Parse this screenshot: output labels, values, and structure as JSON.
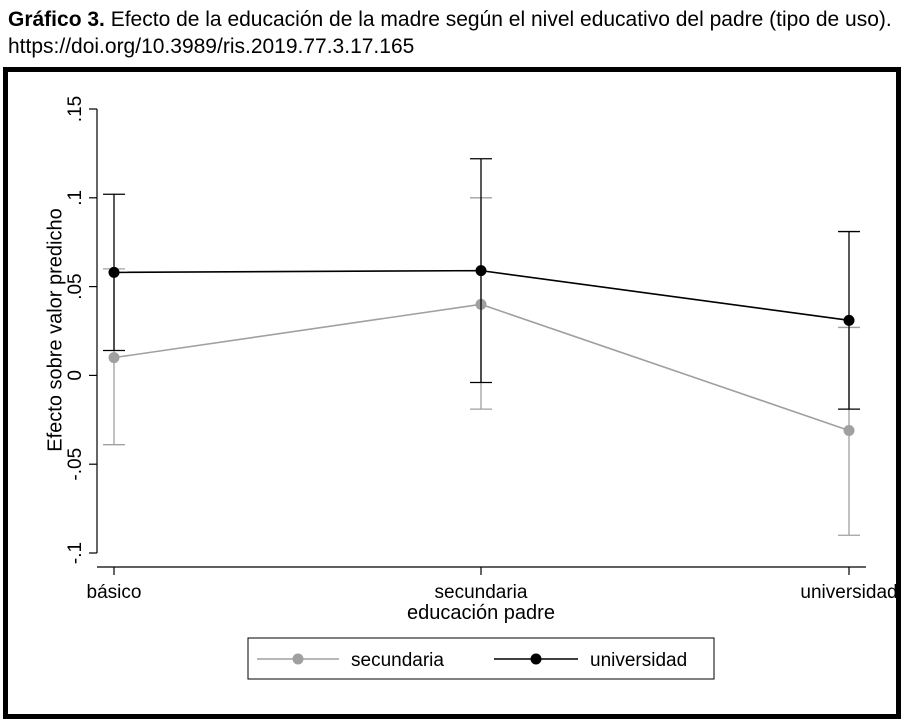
{
  "caption": {
    "prefix": "Gráfico 3.",
    "text": " Efecto de la educación de la madre según el nivel educativo del padre (tipo de uso). https://doi.org/10.3989/ris.2019.77.3.17.165"
  },
  "chart_data": {
    "type": "line",
    "xlabel": "educación padre",
    "ylabel": "Efecto sobre valor predicho",
    "categories": [
      "básico",
      "secundaria",
      "universidad"
    ],
    "ylim": [
      -0.1,
      0.15
    ],
    "yticks": [
      -0.1,
      -0.05,
      0,
      0.05,
      0.1,
      0.15
    ],
    "ytick_labels": [
      "-.1",
      "-.05",
      "0",
      ".05",
      ".1",
      ".15"
    ],
    "grid": false,
    "legend": "bottom",
    "series": [
      {
        "name": "secundaria",
        "color": "#a0a0a0",
        "values": [
          0.01,
          0.04,
          -0.031
        ],
        "ci_low": [
          -0.039,
          -0.019,
          -0.09
        ],
        "ci_high": [
          0.06,
          0.1,
          0.027
        ]
      },
      {
        "name": "universidad",
        "color": "#000000",
        "values": [
          0.058,
          0.059,
          0.031
        ],
        "ci_low": [
          0.014,
          -0.004,
          -0.019
        ],
        "ci_high": [
          0.102,
          0.122,
          0.081
        ]
      }
    ]
  }
}
